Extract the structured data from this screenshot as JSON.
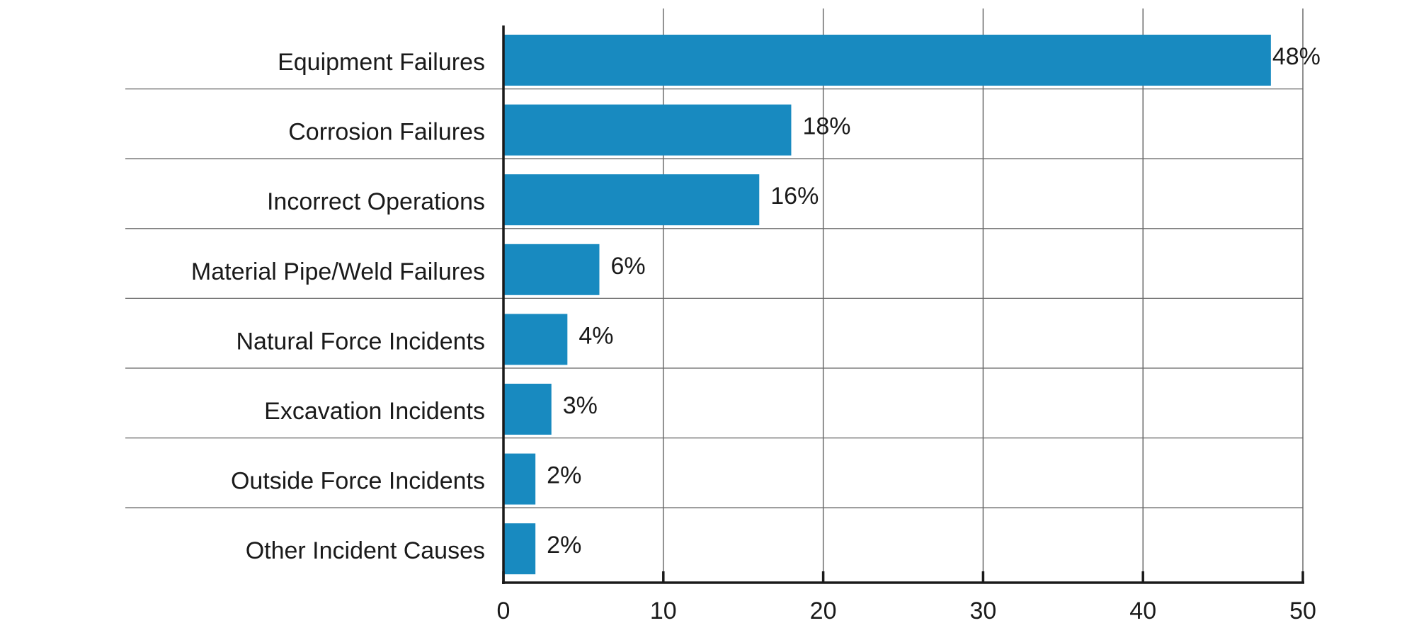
{
  "chart_data": {
    "type": "bar",
    "orientation": "horizontal",
    "categories": [
      "Equipment Failures",
      "Corrosion Failures",
      "Incorrect Operations",
      "Material Pipe/Weld Failures",
      "Natural Force Incidents",
      "Excavation Incidents",
      "Outside Force Incidents",
      "Other Incident Causes"
    ],
    "values": [
      48,
      18,
      16,
      6,
      4,
      3,
      2,
      2
    ],
    "value_labels": [
      "48%",
      "18%",
      "16%",
      "6%",
      "4%",
      "3%",
      "2%",
      "2%"
    ],
    "xlim": [
      0,
      50
    ],
    "xticks": [
      0,
      10,
      20,
      30,
      40,
      50
    ],
    "xtick_labels": [
      "0",
      "10",
      "20",
      "30",
      "40",
      "50"
    ],
    "grid": true,
    "bar_color": "#188AC0",
    "title": "",
    "xlabel": "",
    "ylabel": ""
  }
}
